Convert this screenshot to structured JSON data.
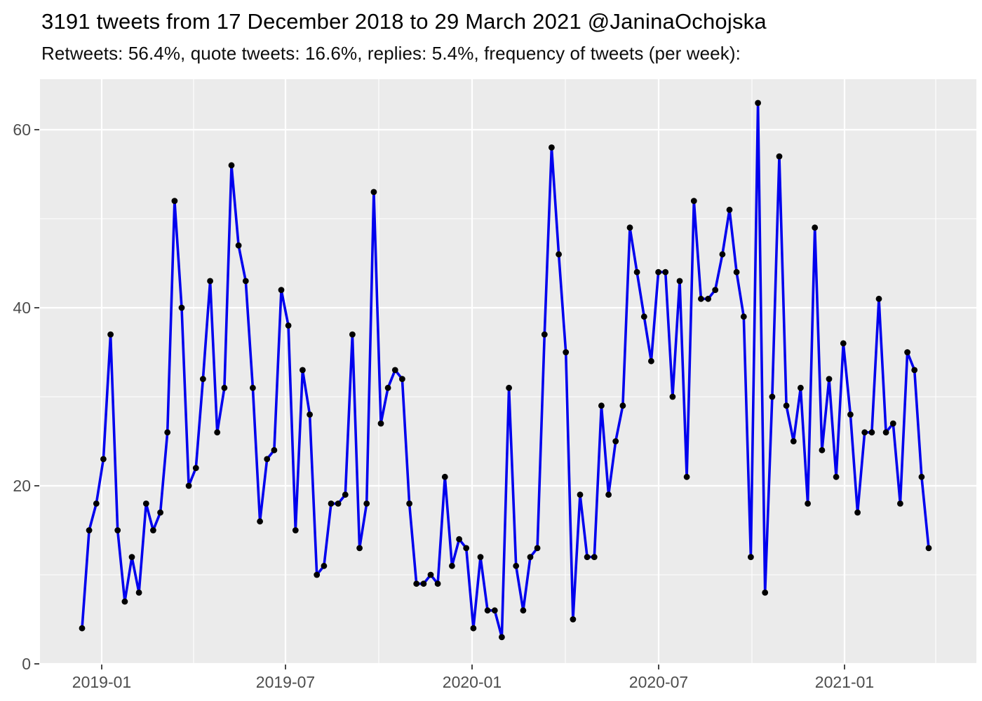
{
  "chart_data": {
    "type": "line",
    "title": "3191 tweets from 17 December 2018 to 29 March 2021 @JaninaOchojska",
    "subtitle": "Retweets: 56.4%, quote tweets: 16.6%, replies: 5.4%, frequency of tweets (per week):",
    "total_tweets": 3191,
    "account": "@JaninaOchojska",
    "interval": "week",
    "x_start_week": "2018-12-17",
    "x_end_week": "2021-03-29",
    "values": [
      4,
      15,
      18,
      23,
      37,
      15,
      7,
      12,
      8,
      18,
      15,
      17,
      26,
      52,
      40,
      20,
      22,
      32,
      43,
      26,
      31,
      56,
      47,
      43,
      31,
      16,
      23,
      24,
      42,
      38,
      15,
      33,
      28,
      10,
      11,
      18,
      18,
      19,
      37,
      13,
      18,
      53,
      27,
      31,
      33,
      32,
      18,
      9,
      9,
      10,
      9,
      21,
      11,
      14,
      13,
      4,
      12,
      6,
      6,
      3,
      31,
      11,
      6,
      12,
      13,
      37,
      58,
      46,
      35,
      5,
      19,
      12,
      12,
      29,
      19,
      25,
      29,
      49,
      44,
      39,
      34,
      44,
      44,
      30,
      43,
      21,
      52,
      41,
      41,
      42,
      46,
      51,
      44,
      39,
      12,
      63,
      8,
      30,
      57,
      29,
      25,
      31,
      18,
      49,
      24,
      32,
      21,
      36,
      28,
      17,
      26,
      26,
      41,
      26,
      27,
      18,
      35,
      33,
      21,
      13
    ],
    "x_tick_labels": [
      "2019-01",
      "2019-07",
      "2020-01",
      "2020-07",
      "2021-01"
    ],
    "y_tick_labels": [
      "0",
      "20",
      "40",
      "60"
    ],
    "y_tick_values": [
      0,
      20,
      40,
      60
    ],
    "y_minor_values": [
      10,
      30,
      50
    ],
    "ylim": [
      0,
      66
    ],
    "grid": "major+minor, white on grey panel",
    "legend": "none",
    "xlabel": "",
    "ylabel": "",
    "colors": {
      "line": "#0000EE",
      "point": "#000000",
      "panel_bg": "#EBEBEB",
      "grid": "#FFFFFF",
      "axis_text": "#4D4D4D",
      "tick_mark": "#333333",
      "title_text": "#000000"
    }
  }
}
